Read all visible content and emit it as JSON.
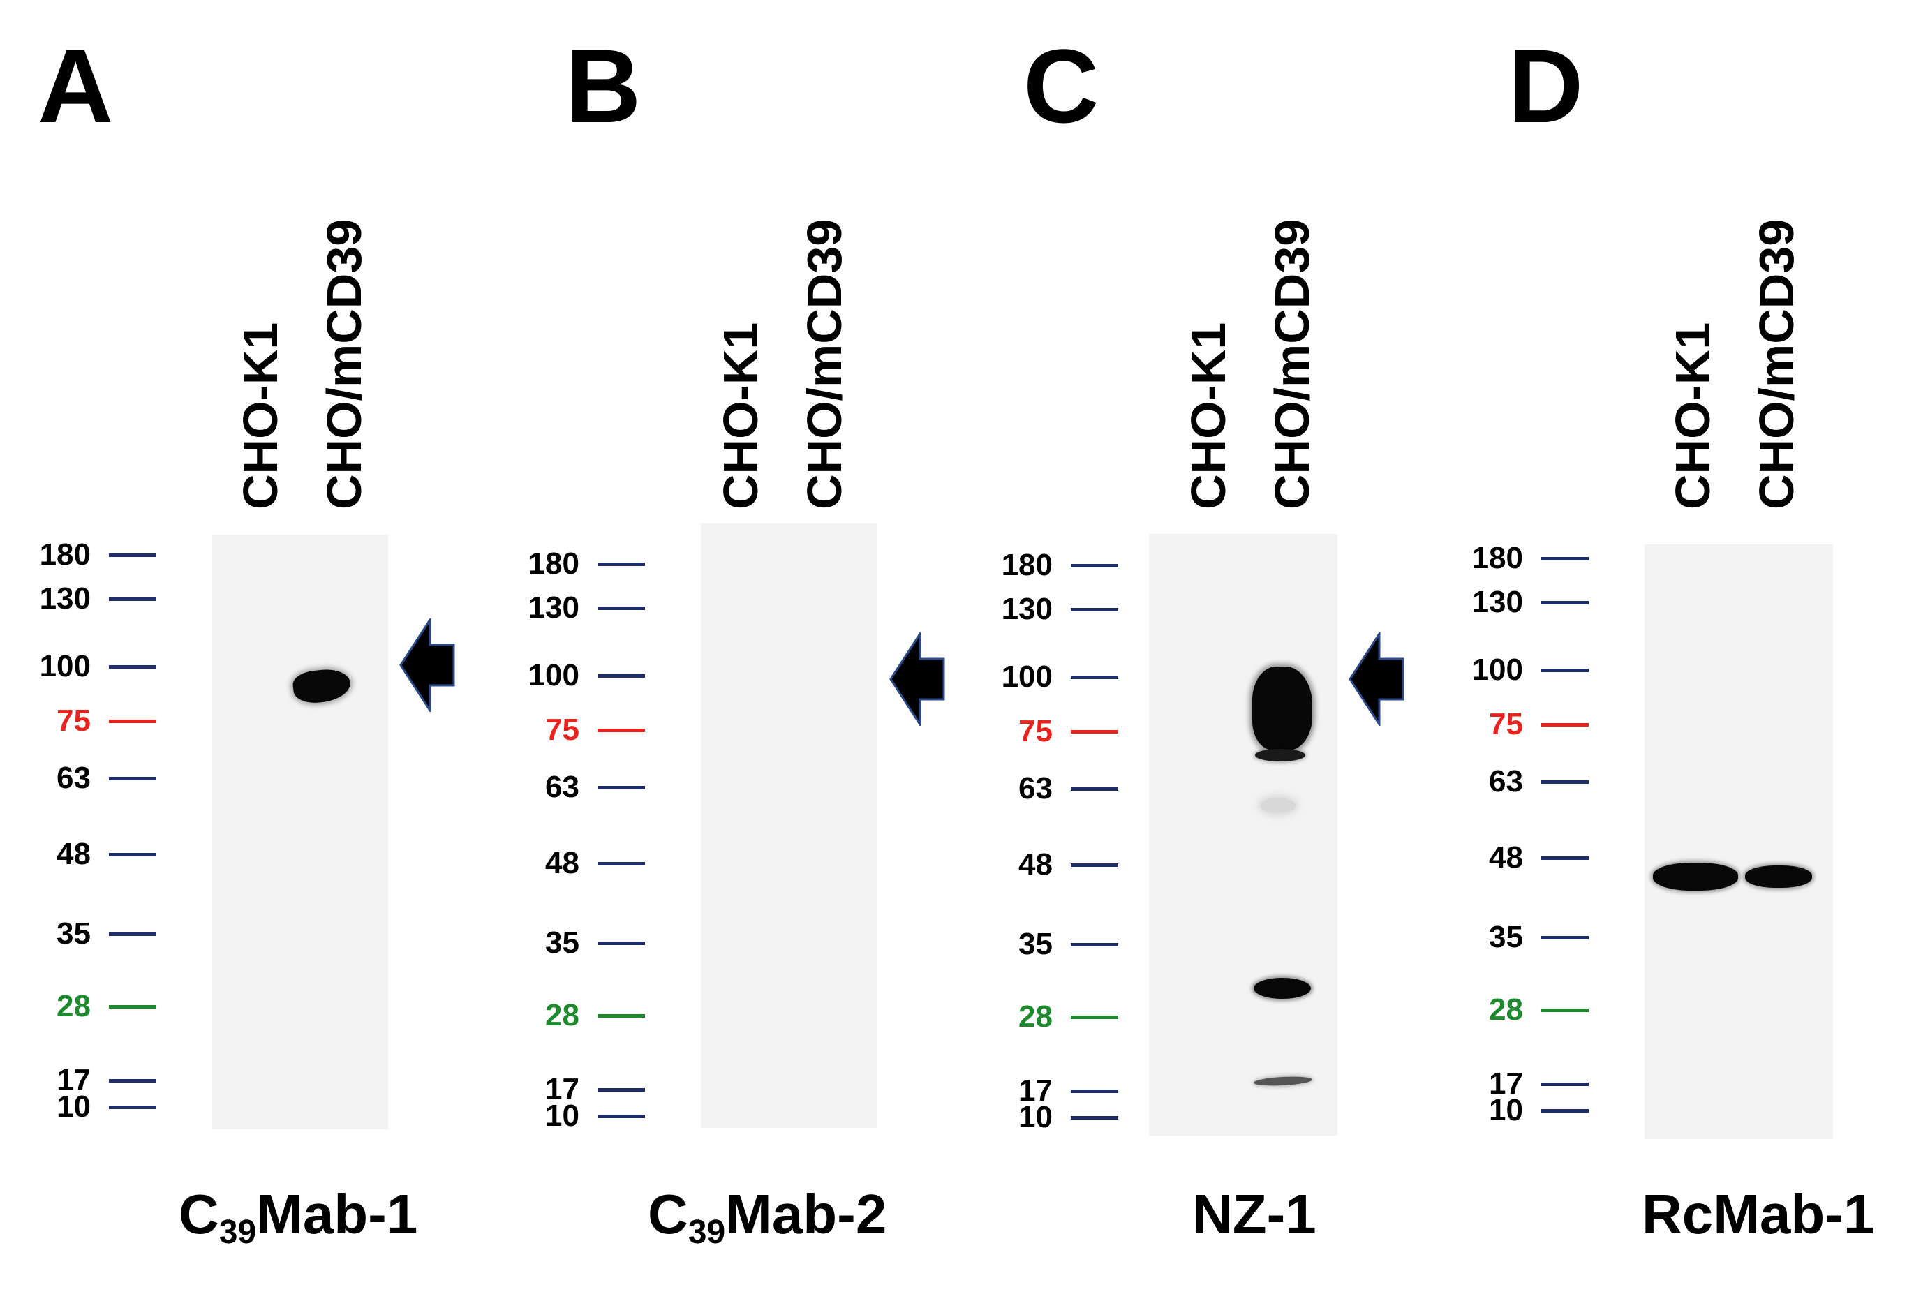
{
  "panels": [
    {
      "letter": "A",
      "lane_1": "CHO-K1",
      "lane_2": "CHO/mCD39",
      "antibody": {
        "prefix": "C",
        "sub": "39",
        "suffix": "Mab-1"
      }
    },
    {
      "letter": "B",
      "lane_1": "CHO-K1",
      "lane_2": "CHO/mCD39",
      "antibody": {
        "prefix": "C",
        "sub": "39",
        "suffix": "Mab-2"
      }
    },
    {
      "letter": "C",
      "lane_1": "CHO-K1",
      "lane_2": "CHO/mCD39",
      "antibody": {
        "prefix": "NZ-1",
        "sub": "",
        "suffix": ""
      }
    },
    {
      "letter": "D",
      "lane_1": "CHO-K1",
      "lane_2": "CHO/mCD39",
      "antibody": {
        "prefix": "RcMab-1",
        "sub": "",
        "suffix": ""
      }
    }
  ],
  "markers": {
    "m180": {
      "label": "180",
      "color": "#000000",
      "tick": "#1f2d6b"
    },
    "m130": {
      "label": "130",
      "color": "#000000",
      "tick": "#1f2d6b"
    },
    "m100": {
      "label": "100",
      "color": "#000000",
      "tick": "#1f2d6b"
    },
    "m75": {
      "label": "75",
      "color": "#e8231d",
      "tick": "#e8231d"
    },
    "m63": {
      "label": "63",
      "color": "#000000",
      "tick": "#1f2d6b"
    },
    "m48": {
      "label": "48",
      "color": "#000000",
      "tick": "#1f2d6b"
    },
    "m35": {
      "label": "35",
      "color": "#000000",
      "tick": "#1f2d6b"
    },
    "m28": {
      "label": "28",
      "color": "#1e8a2e",
      "tick": "#1e8a2e"
    },
    "m17": {
      "label": "17",
      "color": "#000000",
      "tick": "#1f2d6b"
    },
    "m10": {
      "label": "10",
      "color": "#000000",
      "tick": "#1f2d6b"
    }
  },
  "arrow_color": "#000000",
  "arrow_outline": "#2b4a8a"
}
